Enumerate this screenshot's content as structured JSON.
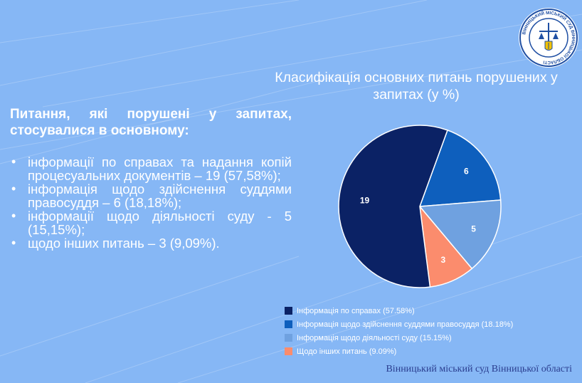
{
  "header": {
    "seal_text": "ВІННИЦЬКИЙ МІСЬКИЙ СУД ВІННИЦЬКОЇ ОБЛАСТІ"
  },
  "left": {
    "heading_line1": "Питання, які порушені у запитах,",
    "heading_line2": "стосувалися в основному:",
    "bullets": [
      "інформації по справах та надання копій процесуальних документів – 19 (57,58%);",
      "інформація щодо здійснення суддями правосуддя – 6 (18,18%);",
      "інформації щодо діяльності суду - 5 (15,15%);",
      "щодо інших питань – 3 (9,09%)."
    ]
  },
  "chart_data": {
    "type": "pie",
    "title": "Класифікація основних питань порушених у запитах (у %)",
    "categories": [
      "Інформація по справах (57.58%)",
      "Інформація щодо здійснення суддями правосуддя (18.18%)",
      "Інформація щодо діяльності суду (15.15%)",
      "Щодо інших питань (9.09%)"
    ],
    "values": [
      19,
      6,
      5,
      3
    ],
    "data_labels": [
      "19",
      "6",
      "5",
      "3"
    ],
    "colors": [
      "#0b2265",
      "#0e5fbd",
      "#6fa1e0",
      "#fb8c6d"
    ],
    "legend_position": "bottom"
  },
  "footer": {
    "text": "Вінницький міський суд Вінницької області"
  }
}
